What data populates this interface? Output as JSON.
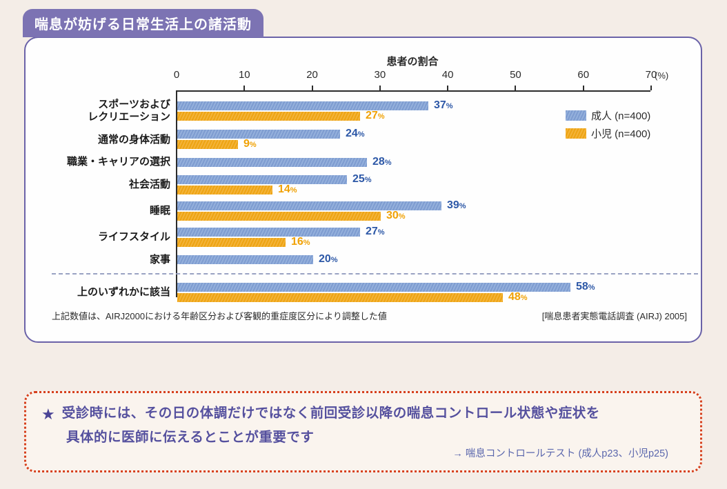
{
  "page": {
    "header_title": "喘息が妨げる日常生活上の諸活動",
    "footnote": "上記数値は、AIRJ2000における年齢区分および客観的重症度区分により調整した値",
    "source": "[喘息患者実態電話調査 (AIRJ) 2005]"
  },
  "chart_data": {
    "type": "bar",
    "orientation": "horizontal",
    "title": "患者の割合",
    "unit_label": "(%)",
    "xlim": [
      0,
      70
    ],
    "ticks": [
      0,
      10,
      20,
      30,
      40,
      50,
      60,
      70
    ],
    "grid": false,
    "legend_position": "right",
    "categories": [
      [
        "スポーツおよび",
        "レクリエーション"
      ],
      [
        "通常の身体活動"
      ],
      [
        "職業・キャリアの選択"
      ],
      [
        "社会活動"
      ],
      [
        "睡眠"
      ],
      [
        "ライフスタイル"
      ],
      [
        "家事"
      ],
      [
        "上のいずれかに該当"
      ]
    ],
    "series": [
      {
        "name": "成人 (n=400)",
        "color": "#84a3d2",
        "values": [
          37,
          24,
          28,
          25,
          39,
          27,
          20,
          58
        ]
      },
      {
        "name": "小児 (n=400)",
        "color": "#f0a820",
        "values": [
          27,
          9,
          null,
          14,
          30,
          16,
          null,
          48
        ]
      }
    ],
    "divider_before_index": 7,
    "value_label_colors": {
      "adult": "#2d58a7",
      "child": "#f0a104"
    }
  },
  "note_box": {
    "star": "★",
    "line1": "受診時には、その日の体調だけではなく前回受診以降の喘息コントロール状態や症状を",
    "line2": "具体的に医師に伝えるとことが重要です",
    "reference": "→ 喘息コントロールテスト (成人p23、小児p25)"
  },
  "colors": {
    "page_background": "#f4ede7",
    "banner_purple": "#7c73b3",
    "panel_border_purple": "#6a62a8",
    "adult_bar_blue": "#84a3d2",
    "child_bar_orange": "#f0a820",
    "adult_value_text": "#2d58a7",
    "child_value_text": "#f0a104",
    "divider_dashed": "#99a2c2",
    "note_border_red": "#d6401d",
    "note_text_purple": "#55509e",
    "note_ref_blue": "#5b67ad"
  }
}
